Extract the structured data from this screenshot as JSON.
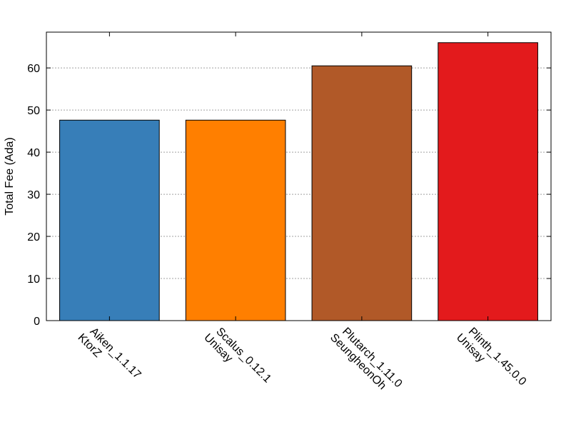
{
  "chart_data": {
    "type": "bar",
    "title": "",
    "xlabel": "",
    "ylabel": "Total Fee (Ada)",
    "ylim": [
      0,
      68.5
    ],
    "yticks": [
      0,
      10,
      20,
      30,
      40,
      50,
      60
    ],
    "grid": true,
    "categories": [
      [
        "Aiken_1.1.17",
        "KtorZ"
      ],
      [
        "Scalus_0.12.1",
        "Unisay"
      ],
      [
        "Plutarch_1.11.0",
        "SeungheonOh"
      ],
      [
        "Plinth_1.45.0.0",
        "Unisay"
      ]
    ],
    "values": [
      47.6,
      47.6,
      60.5,
      66.0
    ],
    "colors": [
      "#377eb8",
      "#ff7f00",
      "#b15928",
      "#e31a1c"
    ]
  }
}
